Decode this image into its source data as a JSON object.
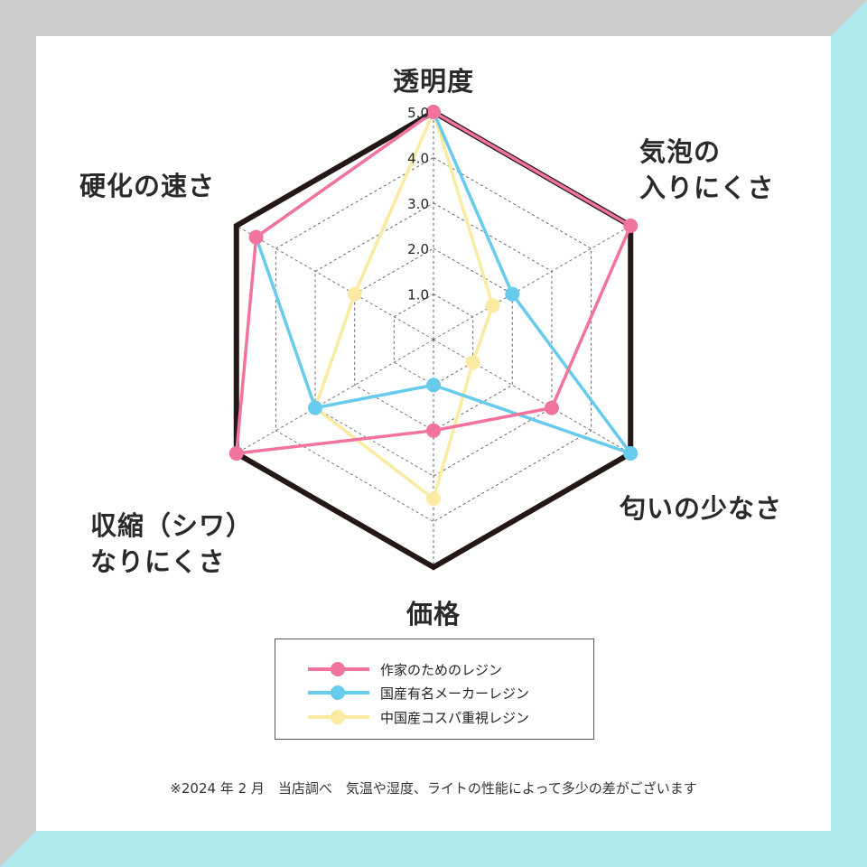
{
  "chart_data": {
    "type": "radar",
    "axes": [
      "透明度",
      "気泡の入りにくさ",
      "匂いの少なさ",
      "価格",
      "収縮（シワ）なりにくさ",
      "硬化の速さ"
    ],
    "axis_label_lines": [
      [
        "透明度"
      ],
      [
        "気泡の",
        "入りにくさ"
      ],
      [
        "匂いの少なさ"
      ],
      [
        "価格"
      ],
      [
        "収縮（シワ）",
        "なりにくさ"
      ],
      [
        "硬化の速さ"
      ]
    ],
    "ticks": [
      "1.0",
      "2.0",
      "3.0",
      "4.0",
      "5.0"
    ],
    "rmax": 5,
    "outline_value": 5,
    "series": [
      {
        "name": "作家のためのレジン",
        "color": "#f2739e",
        "values": [
          5.0,
          5.0,
          3.0,
          2.0,
          5.0,
          4.5
        ]
      },
      {
        "name": "国産有名メーカーレジン",
        "color": "#66cbec",
        "values": [
          5.0,
          2.0,
          5.0,
          1.0,
          3.0,
          4.5
        ]
      },
      {
        "name": "中国産コスパ重視レジン",
        "color": "#fbeaa1",
        "values": [
          5.0,
          1.5,
          1.0,
          3.5,
          3.0,
          2.0
        ]
      }
    ],
    "outline_color": "#231815",
    "grid": true,
    "legend_position": "bottom-center"
  },
  "footnote": "※2024 年 2 月　当店調べ　気温や湿度、ライトの性能によって多少の差がございます",
  "colors": {
    "frame_grey": "#cccccc",
    "frame_cyan": "#ade9ea"
  }
}
